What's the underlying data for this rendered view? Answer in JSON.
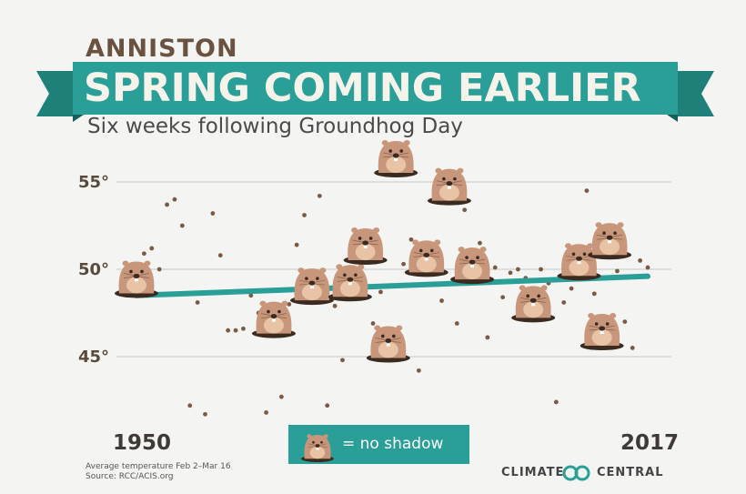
{
  "header": {
    "city": "ANNISTON",
    "title": "SPRING COMING EARLIER",
    "subtitle": "Six weeks following Groundhog Day"
  },
  "legend": {
    "label": "= no shadow",
    "icon": "groundhog-icon"
  },
  "footer": {
    "note": "Average temperature Feb 2–Mar 16",
    "source": "Source: RCC/ACIS.org",
    "brand_left": "CLIMATE",
    "brand_right": "CENTRAL",
    "brand_icon": "climate-central-logo-icon"
  },
  "colors": {
    "teal": "#2a9f98",
    "dot": "#7a5a45",
    "groundhog": "#c8967a",
    "grid": "#c9c9c9"
  },
  "chart_data": {
    "type": "scatter",
    "title": "SPRING COMING EARLIER",
    "subtitle": "Six weeks following Groundhog Day",
    "xlabel": "",
    "ylabel": "",
    "x_tick_labels": [
      "1950",
      "2017"
    ],
    "y_tick_labels": [
      "45°",
      "50°",
      "55°"
    ],
    "y_ticks": [
      45,
      50,
      55
    ],
    "xlim": [
      1950,
      2017
    ],
    "ylim": [
      40,
      57
    ],
    "grid": true,
    "trend": {
      "x": [
        1950,
        2017
      ],
      "y": [
        48.5,
        49.6
      ]
    },
    "series": [
      {
        "name": "= no shadow",
        "points": [
          {
            "x": 1950,
            "y": 49.3,
            "no_shadow": true
          },
          {
            "x": 1951,
            "y": 50.9
          },
          {
            "x": 1952,
            "y": 51.2
          },
          {
            "x": 1953,
            "y": 50.0
          },
          {
            "x": 1954,
            "y": 53.7
          },
          {
            "x": 1955,
            "y": 54.0
          },
          {
            "x": 1956,
            "y": 52.5
          },
          {
            "x": 1957,
            "y": 42.2
          },
          {
            "x": 1958,
            "y": 48.1
          },
          {
            "x": 1959,
            "y": 41.7
          },
          {
            "x": 1960,
            "y": 53.2
          },
          {
            "x": 1961,
            "y": 50.8
          },
          {
            "x": 1962,
            "y": 46.5
          },
          {
            "x": 1963,
            "y": 46.5
          },
          {
            "x": 1964,
            "y": 46.6
          },
          {
            "x": 1965,
            "y": 48.5
          },
          {
            "x": 1966,
            "y": 47.5
          },
          {
            "x": 1967,
            "y": 41.8
          },
          {
            "x": 1968,
            "y": 47.0,
            "no_shadow": true
          },
          {
            "x": 1969,
            "y": 42.7
          },
          {
            "x": 1970,
            "y": 48.0
          },
          {
            "x": 1971,
            "y": 51.4
          },
          {
            "x": 1972,
            "y": 53.1
          },
          {
            "x": 1973,
            "y": 48.9,
            "no_shadow": true
          },
          {
            "x": 1974,
            "y": 54.2
          },
          {
            "x": 1975,
            "y": 42.2
          },
          {
            "x": 1976,
            "y": 47.9
          },
          {
            "x": 1977,
            "y": 44.8
          },
          {
            "x": 1978,
            "y": 49.1,
            "no_shadow": true
          },
          {
            "x": 1979,
            "y": 50.6
          },
          {
            "x": 1980,
            "y": 51.2,
            "no_shadow": true
          },
          {
            "x": 1981,
            "y": 46.9
          },
          {
            "x": 1982,
            "y": 48.7
          },
          {
            "x": 1983,
            "y": 45.6,
            "no_shadow": true
          },
          {
            "x": 1984,
            "y": 56.2,
            "no_shadow": true
          },
          {
            "x": 1985,
            "y": 50.3
          },
          {
            "x": 1986,
            "y": 51.7
          },
          {
            "x": 1987,
            "y": 44.2
          },
          {
            "x": 1988,
            "y": 50.5,
            "no_shadow": true
          },
          {
            "x": 1989,
            "y": 51.3
          },
          {
            "x": 1990,
            "y": 48.2
          },
          {
            "x": 1991,
            "y": 54.6,
            "no_shadow": true
          },
          {
            "x": 1992,
            "y": 46.9
          },
          {
            "x": 1993,
            "y": 53.4
          },
          {
            "x": 1994,
            "y": 50.1,
            "no_shadow": true
          },
          {
            "x": 1995,
            "y": 51.5
          },
          {
            "x": 1996,
            "y": 46.1
          },
          {
            "x": 1997,
            "y": 50.1
          },
          {
            "x": 1998,
            "y": 48.4
          },
          {
            "x": 1999,
            "y": 49.8
          },
          {
            "x": 2000,
            "y": 50.0
          },
          {
            "x": 2001,
            "y": 49.5
          },
          {
            "x": 2002,
            "y": 47.9,
            "no_shadow": true
          },
          {
            "x": 2003,
            "y": 50.0
          },
          {
            "x": 2004,
            "y": 49.2
          },
          {
            "x": 2005,
            "y": 42.4
          },
          {
            "x": 2006,
            "y": 48.1
          },
          {
            "x": 2007,
            "y": 48.9
          },
          {
            "x": 2008,
            "y": 50.3,
            "no_shadow": true
          },
          {
            "x": 2009,
            "y": 54.5
          },
          {
            "x": 2010,
            "y": 48.6
          },
          {
            "x": 2011,
            "y": 46.3,
            "no_shadow": true
          },
          {
            "x": 2012,
            "y": 51.5,
            "no_shadow": true
          },
          {
            "x": 2013,
            "y": 49.9
          },
          {
            "x": 2014,
            "y": 47.0
          },
          {
            "x": 2015,
            "y": 45.5
          },
          {
            "x": 2016,
            "y": 50.5
          },
          {
            "x": 2017,
            "y": 50.1
          }
        ]
      }
    ]
  }
}
